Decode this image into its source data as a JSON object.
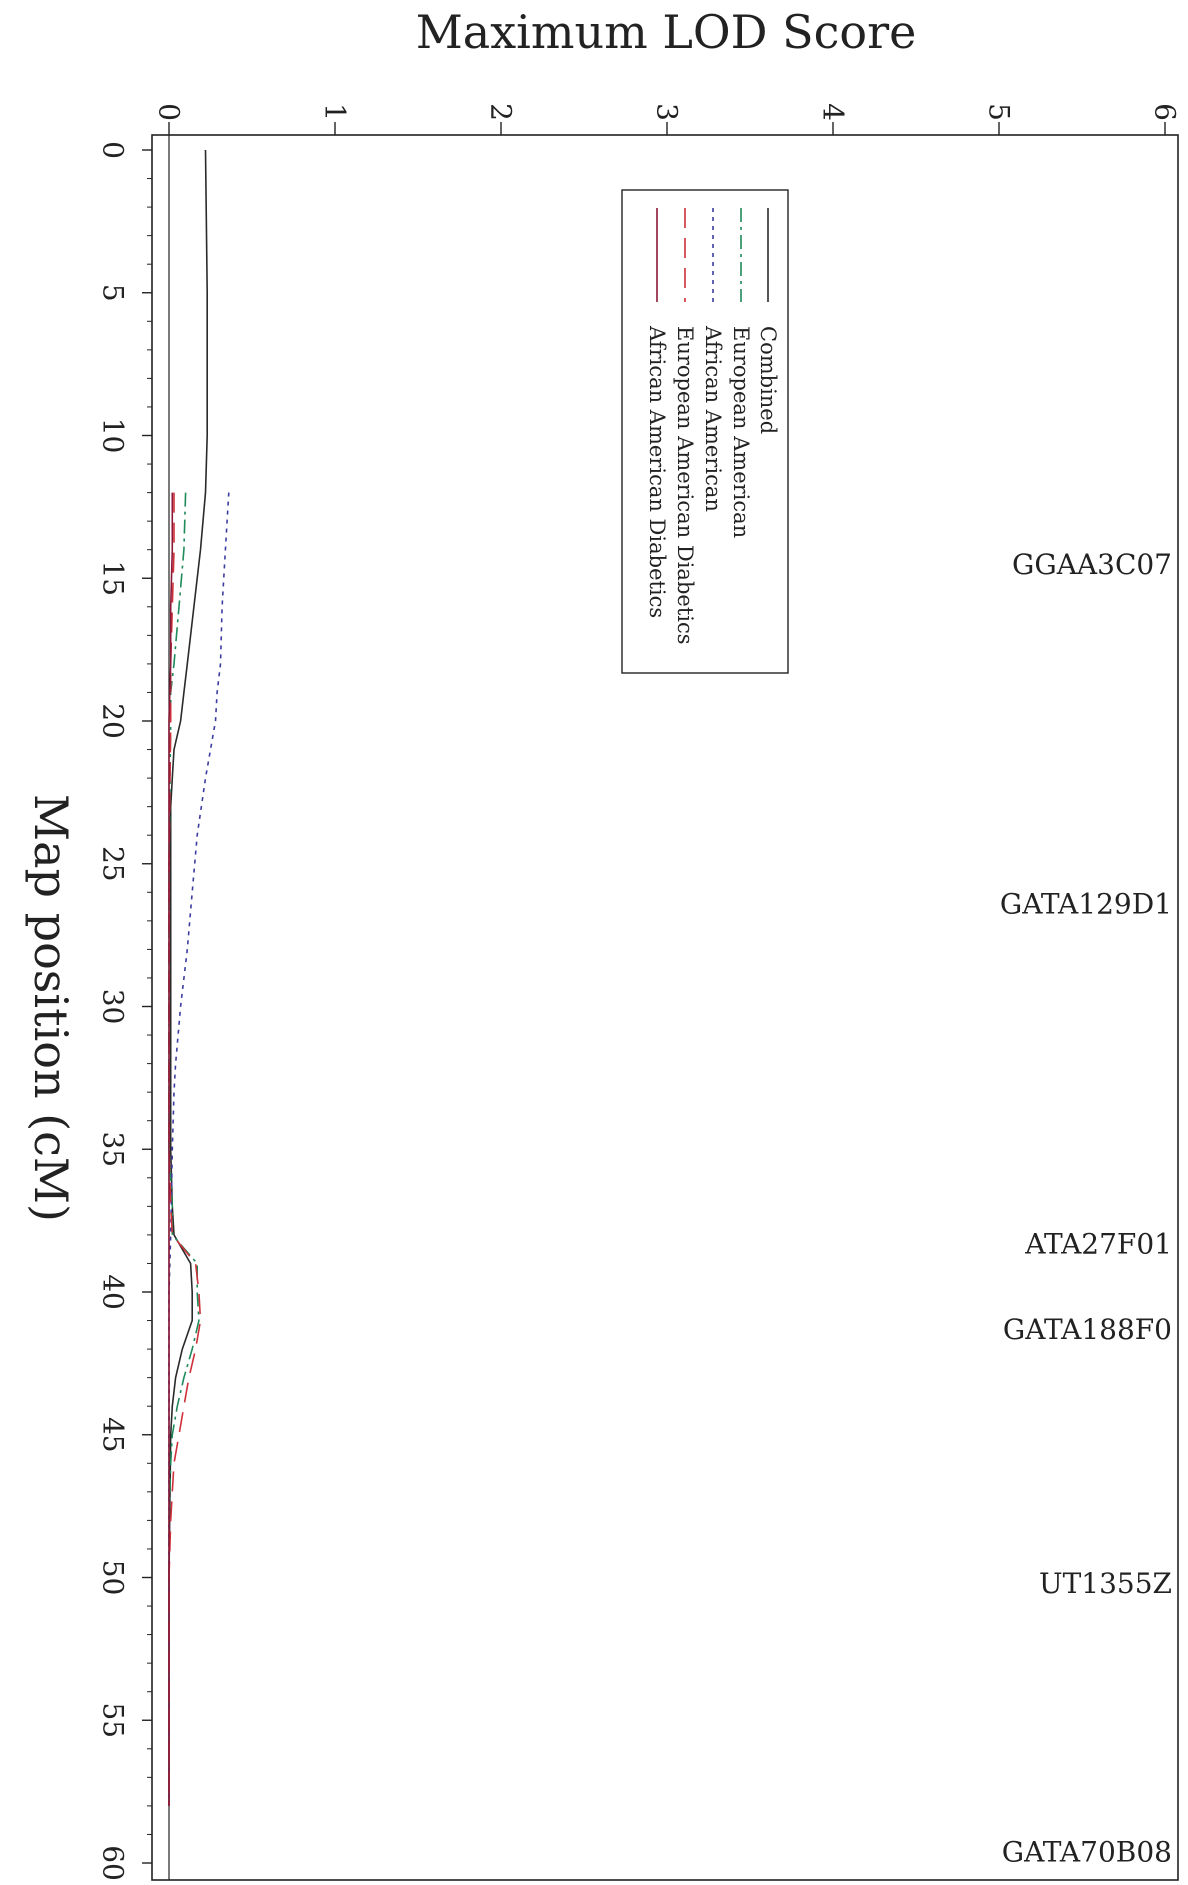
{
  "chart_data": {
    "type": "line",
    "orientation": "rotated-90-clockwise",
    "title": "",
    "ylabel": "Maximum LOD Score",
    "xlabel": "Map position (cM)",
    "ylim": [
      0,
      6
    ],
    "xlim": [
      0,
      60
    ],
    "yticks": [
      "0",
      "1",
      "2",
      "3",
      "4",
      "5",
      "6"
    ],
    "xticks": [
      "0",
      "5",
      "10",
      "15",
      "20",
      "25",
      "30",
      "35",
      "40",
      "45",
      "50",
      "55",
      "60"
    ],
    "grid": false,
    "legend_position": "top-right",
    "markers": [
      {
        "name": "GGAA3C07",
        "pos": 14.5
      },
      {
        "name": "GATA129D1",
        "pos": 26.4
      },
      {
        "name": "ATA27F01",
        "pos": 38.3
      },
      {
        "name": "GATA188F0",
        "pos": 41.3
      },
      {
        "name": "UT1355Z",
        "pos": 50.2
      },
      {
        "name": "GATA70B08",
        "pos": 59.6
      }
    ],
    "series": [
      {
        "name": "Combined",
        "color": "#2a2a2a",
        "dash": "",
        "points": [
          [
            0,
            0.22
          ],
          [
            5,
            0.23
          ],
          [
            10,
            0.23
          ],
          [
            12,
            0.22
          ],
          [
            14,
            0.19
          ],
          [
            16,
            0.15
          ],
          [
            18,
            0.11
          ],
          [
            19,
            0.09
          ],
          [
            20,
            0.07
          ],
          [
            21,
            0.03
          ],
          [
            22,
            0.02
          ],
          [
            23,
            0.01
          ],
          [
            25,
            0.01
          ],
          [
            30,
            0.01
          ],
          [
            35,
            0.01
          ],
          [
            37,
            0.02
          ],
          [
            38,
            0.03
          ],
          [
            39,
            0.13
          ],
          [
            40,
            0.14
          ],
          [
            41,
            0.14
          ],
          [
            42,
            0.08
          ],
          [
            43,
            0.04
          ],
          [
            44,
            0.02
          ],
          [
            45,
            0.01
          ],
          [
            50,
            0
          ],
          [
            58,
            0
          ]
        ]
      },
      {
        "name": "European American",
        "color": "#1f8a5a",
        "dash": "14 5 3 5",
        "points": [
          [
            12,
            0.1
          ],
          [
            14,
            0.09
          ],
          [
            16,
            0.06
          ],
          [
            18,
            0.03
          ],
          [
            19,
            0.01
          ],
          [
            20,
            0.01
          ],
          [
            25,
            0
          ],
          [
            30,
            0
          ],
          [
            35,
            0
          ],
          [
            37,
            0.02
          ],
          [
            38,
            0.02
          ],
          [
            39,
            0.17
          ],
          [
            40,
            0.17
          ],
          [
            41,
            0.18
          ],
          [
            42,
            0.14
          ],
          [
            43,
            0.09
          ],
          [
            44,
            0.05
          ],
          [
            45,
            0.02
          ],
          [
            46,
            0.01
          ],
          [
            48,
            0
          ],
          [
            58,
            0
          ]
        ]
      },
      {
        "name": "African American",
        "color": "#3c3ca0",
        "dash": "4 5",
        "points": [
          [
            12,
            0.36
          ],
          [
            14,
            0.34
          ],
          [
            16,
            0.32
          ],
          [
            18,
            0.31
          ],
          [
            19,
            0.29
          ],
          [
            20,
            0.28
          ],
          [
            21,
            0.25
          ],
          [
            22,
            0.22
          ],
          [
            24,
            0.17
          ],
          [
            26,
            0.14
          ],
          [
            28,
            0.11
          ],
          [
            30,
            0.07
          ],
          [
            32,
            0.04
          ],
          [
            33,
            0.03
          ],
          [
            35,
            0.02
          ],
          [
            38,
            0.01
          ],
          [
            40,
            0
          ],
          [
            50,
            0
          ],
          [
            58,
            0
          ]
        ]
      },
      {
        "name": "European American Diabetics",
        "color": "#d0303a",
        "dash": "20 10",
        "points": [
          [
            12,
            0.03
          ],
          [
            14,
            0.03
          ],
          [
            16,
            0.02
          ],
          [
            18,
            0.01
          ],
          [
            20,
            0.01
          ],
          [
            25,
            0
          ],
          [
            30,
            0
          ],
          [
            35,
            0
          ],
          [
            37,
            0.01
          ],
          [
            38,
            0.02
          ],
          [
            39,
            0.16
          ],
          [
            40,
            0.18
          ],
          [
            41,
            0.19
          ],
          [
            42,
            0.16
          ],
          [
            43,
            0.12
          ],
          [
            44,
            0.09
          ],
          [
            45,
            0.06
          ],
          [
            46,
            0.03
          ],
          [
            47,
            0.02
          ],
          [
            48,
            0.01
          ],
          [
            50,
            0
          ],
          [
            58,
            0
          ]
        ]
      },
      {
        "name": "African American Diabetics",
        "color": "#8a1838",
        "dash": "",
        "points": [
          [
            12,
            0.02
          ],
          [
            14,
            0.02
          ],
          [
            16,
            0.01
          ],
          [
            18,
            0.01
          ],
          [
            20,
            0
          ],
          [
            25,
            0
          ],
          [
            30,
            0
          ],
          [
            35,
            0
          ],
          [
            38,
            0
          ],
          [
            40,
            0
          ],
          [
            50,
            0
          ],
          [
            58,
            0
          ]
        ]
      }
    ]
  }
}
